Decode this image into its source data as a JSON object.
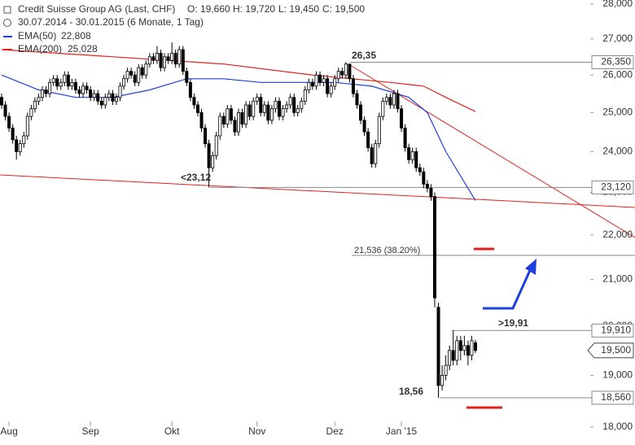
{
  "chart_data": {
    "type": "candlestick",
    "title": "Credit Suisse Group AG (Last, CHF)",
    "quote": [
      "O: 19,660",
      "H: 19,720",
      "L: 19,450",
      "C: 19,500"
    ],
    "subtitle": "30.07.2014 - 30.01.2015 (6 Monate, 1 Tag)",
    "log_scale": true,
    "ylim": [
      18,
      28
    ],
    "yticks": [
      {
        "value": 28,
        "label": "28,000"
      },
      {
        "value": 27,
        "label": "27,000"
      },
      {
        "value": 26,
        "label": "26,000"
      },
      {
        "value": 25,
        "label": "25,000"
      },
      {
        "value": 24,
        "label": "24,000"
      },
      {
        "value": 23,
        "label": "23,000"
      },
      {
        "value": 22,
        "label": "22,000"
      },
      {
        "value": 21,
        "label": "21,000"
      },
      {
        "value": 20,
        "label": "20,000"
      },
      {
        "value": 19,
        "label": "19,000"
      },
      {
        "value": 18,
        "label": "18,000"
      }
    ],
    "xlim": [
      0,
      128
    ],
    "xticks": [
      {
        "value": 2,
        "label": "Aug"
      },
      {
        "value": 24,
        "label": "Sep"
      },
      {
        "value": 46,
        "label": "Okt"
      },
      {
        "value": 69,
        "label": "Nov"
      },
      {
        "value": 90,
        "label": "Dez"
      },
      {
        "value": 108,
        "label": "Jan '15"
      }
    ],
    "candle_colors": {
      "up": "#ffffff",
      "down": "#000000"
    },
    "ohlc": [
      [
        25.4,
        25.5,
        25.1,
        25.2
      ],
      [
        25.2,
        25.3,
        24.8,
        24.9
      ],
      [
        24.9,
        25.0,
        24.5,
        24.6
      ],
      [
        24.6,
        24.7,
        24.2,
        24.3
      ],
      [
        24.3,
        24.4,
        23.8,
        24.0
      ],
      [
        24.0,
        24.3,
        23.9,
        24.2
      ],
      [
        24.2,
        24.5,
        24.1,
        24.4
      ],
      [
        24.4,
        25.0,
        24.3,
        24.9
      ],
      [
        24.9,
        25.2,
        24.8,
        25.1
      ],
      [
        25.1,
        25.4,
        25.0,
        25.3
      ],
      [
        25.3,
        25.5,
        25.2,
        25.4
      ],
      [
        25.4,
        25.7,
        25.3,
        25.6
      ],
      [
        25.6,
        25.7,
        25.4,
        25.5
      ],
      [
        25.5,
        25.9,
        25.4,
        25.8
      ],
      [
        25.8,
        26.0,
        25.7,
        25.9
      ],
      [
        25.9,
        26.0,
        25.6,
        25.7
      ],
      [
        25.7,
        25.9,
        25.6,
        25.8
      ],
      [
        25.8,
        26.1,
        25.7,
        26.0
      ],
      [
        26.0,
        26.1,
        25.6,
        25.7
      ],
      [
        25.7,
        25.9,
        25.6,
        25.8
      ],
      [
        25.8,
        25.9,
        25.5,
        25.6
      ],
      [
        25.6,
        25.7,
        25.4,
        25.5
      ],
      [
        25.5,
        25.8,
        25.4,
        25.7
      ],
      [
        25.7,
        25.8,
        25.5,
        25.6
      ],
      [
        25.6,
        25.7,
        25.3,
        25.4
      ],
      [
        25.4,
        25.6,
        25.3,
        25.5
      ],
      [
        25.5,
        25.6,
        25.2,
        25.3
      ],
      [
        25.3,
        25.4,
        25.1,
        25.2
      ],
      [
        25.2,
        25.5,
        25.1,
        25.4
      ],
      [
        25.4,
        25.6,
        25.3,
        25.5
      ],
      [
        25.5,
        25.6,
        25.2,
        25.3
      ],
      [
        25.3,
        25.5,
        25.2,
        25.4
      ],
      [
        25.4,
        25.8,
        25.3,
        25.7
      ],
      [
        25.7,
        26.0,
        25.6,
        25.9
      ],
      [
        25.9,
        26.2,
        25.8,
        26.1
      ],
      [
        26.1,
        26.2,
        25.9,
        26.0
      ],
      [
        26.0,
        26.1,
        25.7,
        25.8
      ],
      [
        25.8,
        26.3,
        25.7,
        26.2
      ],
      [
        26.2,
        26.3,
        25.9,
        26.0
      ],
      [
        26.0,
        26.4,
        25.9,
        26.3
      ],
      [
        26.3,
        26.6,
        26.2,
        26.5
      ],
      [
        26.5,
        26.6,
        26.3,
        26.4
      ],
      [
        26.4,
        26.8,
        26.3,
        26.6
      ],
      [
        26.6,
        26.7,
        26.1,
        26.2
      ],
      [
        26.2,
        26.6,
        26.1,
        26.5
      ],
      [
        26.5,
        26.6,
        26.3,
        26.4
      ],
      [
        26.4,
        26.9,
        26.3,
        26.6
      ],
      [
        26.6,
        26.7,
        26.2,
        26.3
      ],
      [
        26.3,
        26.8,
        26.2,
        26.7
      ],
      [
        26.7,
        26.8,
        26.0,
        26.1
      ],
      [
        26.1,
        26.2,
        25.7,
        25.8
      ],
      [
        25.8,
        25.9,
        25.3,
        25.4
      ],
      [
        25.4,
        25.5,
        25.1,
        25.2
      ],
      [
        25.2,
        25.3,
        24.9,
        25.0
      ],
      [
        25.0,
        25.1,
        24.5,
        24.6
      ],
      [
        24.6,
        24.7,
        24.1,
        24.2
      ],
      [
        24.2,
        24.3,
        23.12,
        23.6
      ],
      [
        23.6,
        24.0,
        23.5,
        23.9
      ],
      [
        23.9,
        24.5,
        23.8,
        24.4
      ],
      [
        24.4,
        25.0,
        24.3,
        24.9
      ],
      [
        24.9,
        25.0,
        24.6,
        24.7
      ],
      [
        24.7,
        25.2,
        24.6,
        25.1
      ],
      [
        25.1,
        25.2,
        24.7,
        24.8
      ],
      [
        24.8,
        24.9,
        24.4,
        24.5
      ],
      [
        24.5,
        25.1,
        24.4,
        25.0
      ],
      [
        25.0,
        25.1,
        24.6,
        24.7
      ],
      [
        24.7,
        25.3,
        24.6,
        25.2
      ],
      [
        25.2,
        25.3,
        24.8,
        24.9
      ],
      [
        24.9,
        25.4,
        24.8,
        25.3
      ],
      [
        25.3,
        25.5,
        25.2,
        25.4
      ],
      [
        25.4,
        25.5,
        24.9,
        25.0
      ],
      [
        25.0,
        25.3,
        24.9,
        25.2
      ],
      [
        25.2,
        25.3,
        24.7,
        24.8
      ],
      [
        24.8,
        25.2,
        24.7,
        25.1
      ],
      [
        25.1,
        25.4,
        25.0,
        25.3
      ],
      [
        25.3,
        25.4,
        24.8,
        24.9
      ],
      [
        24.9,
        25.2,
        24.8,
        25.1
      ],
      [
        25.1,
        25.3,
        25.0,
        25.2
      ],
      [
        25.2,
        25.5,
        25.1,
        25.4
      ],
      [
        25.4,
        25.5,
        24.9,
        25.0
      ],
      [
        25.0,
        25.2,
        24.9,
        25.1
      ],
      [
        25.1,
        25.4,
        25.0,
        25.3
      ],
      [
        25.3,
        25.7,
        25.2,
        25.6
      ],
      [
        25.6,
        25.9,
        25.5,
        25.8
      ],
      [
        25.8,
        25.9,
        25.6,
        25.7
      ],
      [
        25.7,
        26.1,
        25.6,
        26.0
      ],
      [
        26.0,
        26.1,
        25.7,
        25.8
      ],
      [
        25.8,
        26.0,
        25.7,
        25.9
      ],
      [
        25.9,
        26.0,
        25.4,
        25.5
      ],
      [
        25.5,
        25.8,
        25.4,
        25.7
      ],
      [
        25.7,
        26.0,
        25.6,
        25.9
      ],
      [
        25.9,
        26.2,
        25.8,
        26.1
      ],
      [
        26.1,
        26.2,
        25.9,
        26.0
      ],
      [
        26.0,
        26.35,
        25.9,
        26.3
      ],
      [
        26.3,
        26.3,
        25.8,
        25.9
      ],
      [
        25.9,
        26.0,
        25.4,
        25.5
      ],
      [
        25.5,
        25.6,
        25.1,
        25.2
      ],
      [
        25.2,
        25.3,
        24.7,
        24.8
      ],
      [
        24.8,
        24.9,
        24.4,
        24.5
      ],
      [
        24.5,
        24.6,
        24.0,
        24.1
      ],
      [
        24.1,
        24.2,
        23.6,
        23.7
      ],
      [
        23.7,
        24.3,
        23.6,
        24.2
      ],
      [
        24.2,
        25.0,
        24.1,
        24.9
      ],
      [
        24.9,
        25.4,
        24.8,
        25.3
      ],
      [
        25.3,
        25.5,
        25.2,
        25.4
      ],
      [
        25.4,
        25.5,
        25.1,
        25.2
      ],
      [
        25.2,
        25.6,
        25.1,
        25.5
      ],
      [
        25.5,
        25.6,
        25.0,
        25.1
      ],
      [
        25.1,
        25.2,
        24.5,
        24.6
      ],
      [
        24.6,
        24.7,
        24.0,
        24.1
      ],
      [
        24.1,
        24.2,
        23.7,
        23.8
      ],
      [
        23.8,
        24.1,
        23.7,
        24.0
      ],
      [
        24.0,
        24.1,
        23.5,
        23.6
      ],
      [
        23.6,
        23.7,
        23.4,
        23.5
      ],
      [
        23.5,
        23.6,
        23.1,
        23.2
      ],
      [
        23.2,
        23.3,
        23.0,
        23.1
      ],
      [
        23.1,
        23.2,
        22.8,
        22.9
      ],
      [
        22.9,
        23.0,
        20.4,
        20.6
      ],
      [
        20.4,
        20.5,
        18.56,
        18.8
      ],
      [
        18.8,
        19.2,
        18.7,
        19.0
      ],
      [
        19.0,
        19.4,
        18.9,
        19.2
      ],
      [
        19.2,
        19.6,
        19.1,
        19.5
      ],
      [
        19.5,
        19.91,
        19.2,
        19.3
      ],
      [
        19.3,
        19.8,
        19.2,
        19.7
      ],
      [
        19.7,
        19.8,
        19.3,
        19.5
      ],
      [
        19.5,
        19.8,
        19.4,
        19.6
      ],
      [
        19.6,
        19.7,
        19.2,
        19.4
      ],
      [
        19.4,
        19.8,
        19.3,
        19.7
      ],
      [
        19.66,
        19.72,
        19.45,
        19.5
      ]
    ],
    "series": [
      {
        "name": "EMA(50)",
        "color": "#1f3fdf",
        "value_label": "22,808",
        "x": [
          0,
          10,
          20,
          30,
          40,
          50,
          60,
          70,
          80,
          90,
          100,
          110,
          115,
          120,
          128
        ],
        "values": [
          26.0,
          25.6,
          25.4,
          25.4,
          25.6,
          25.9,
          25.9,
          25.8,
          25.8,
          25.8,
          25.7,
          25.4,
          25.0,
          24.0,
          22.808
        ]
      },
      {
        "name": "EMA(200)",
        "color": "#e0201b",
        "value_label": "25,028",
        "x": [
          0,
          30,
          60,
          84,
          105,
          114,
          120,
          128
        ],
        "values": [
          26.7,
          26.5,
          26.3,
          26.0,
          25.8,
          25.7,
          25.4,
          25.028
        ]
      }
    ],
    "levels": [
      {
        "value": 26.35,
        "label": "26,350",
        "note": "26,35",
        "color": "#1f3fdf"
      },
      {
        "value": 23.12,
        "label": "23,120",
        "note": "<23,12",
        "color": "#e0201b"
      },
      {
        "value": 21.536,
        "note": "21,536 (38.20%)",
        "color": "#777777"
      },
      {
        "value": 19.91,
        "label": "19,910",
        "note": ">19,91",
        "color": "#1f3fdf"
      },
      {
        "value": 18.56,
        "label": "18,560",
        "note": "18,56",
        "color": "#666666"
      }
    ],
    "last_price": {
      "value": 19.5,
      "label": "19,500"
    }
  }
}
